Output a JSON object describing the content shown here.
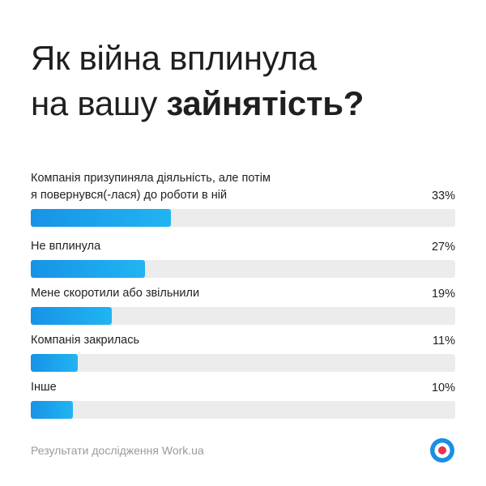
{
  "title": {
    "line1": "Як війна вплинула",
    "line2_regular": "на вашу ",
    "line2_bold": "зайнятість?"
  },
  "chart_data": {
    "type": "bar",
    "orientation": "horizontal",
    "categories": [
      "Компанія призупиняла діяльність, але потім\nя повернувся(-лася) до роботи в ній",
      "Не вплинула",
      "Мене скоротили або звільнили",
      "Компанія закрилась",
      "Інше"
    ],
    "values": [
      33,
      27,
      19,
      11,
      10
    ],
    "value_labels": [
      "33%",
      "27%",
      "19%",
      "11%",
      "10%"
    ],
    "xlim": [
      0,
      100
    ],
    "unit": "%",
    "colors": {
      "bar": "#1a9ae9",
      "track": "#ececec"
    }
  },
  "footer": {
    "source": "Результати дослідження Work.ua"
  },
  "logo": {
    "icon": "work-ua-logo-icon",
    "colors": {
      "outer": "#1a8fe3",
      "middle": "#ffffff",
      "inner": "#e8344e"
    }
  }
}
